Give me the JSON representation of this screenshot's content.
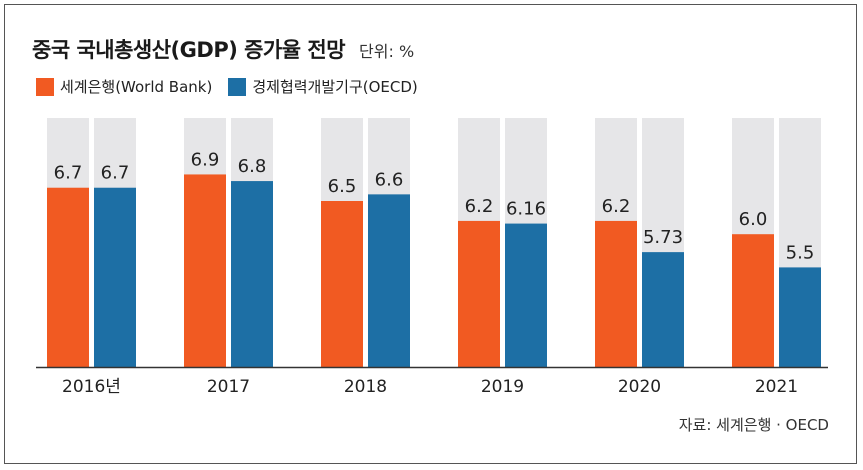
{
  "header": {
    "title": "중국 국내총생산(GDP) 증가율 전망",
    "unit": "단위: %"
  },
  "legend": [
    {
      "label": "세계은행(World Bank)",
      "color": "#f15a22"
    },
    {
      "label": "경제협력개발기구(OECD)",
      "color": "#1d6fa5"
    }
  ],
  "source": "자료: 세계은행 · OECD",
  "chart_data": {
    "type": "bar",
    "categories": [
      "2016년",
      "2017",
      "2018",
      "2019",
      "2020",
      "2021"
    ],
    "series": [
      {
        "name": "세계은행(World Bank)",
        "values": [
          6.7,
          6.9,
          6.5,
          6.2,
          6.2,
          6.0
        ],
        "labels": [
          "6.7",
          "6.9",
          "6.5",
          "6.2",
          "6.2",
          "6.0"
        ],
        "color": "#f15a22"
      },
      {
        "name": "경제협력개발기구(OECD)",
        "values": [
          6.7,
          6.8,
          6.6,
          6.16,
          5.73,
          5.5
        ],
        "labels": [
          "6.7",
          "6.8",
          "6.6",
          "6.16",
          "5.73",
          "5.5"
        ],
        "color": "#1d6fa5"
      }
    ],
    "ylim": [
      4.0,
      7.75
    ],
    "background_bar_color": "#e6e6e8"
  }
}
